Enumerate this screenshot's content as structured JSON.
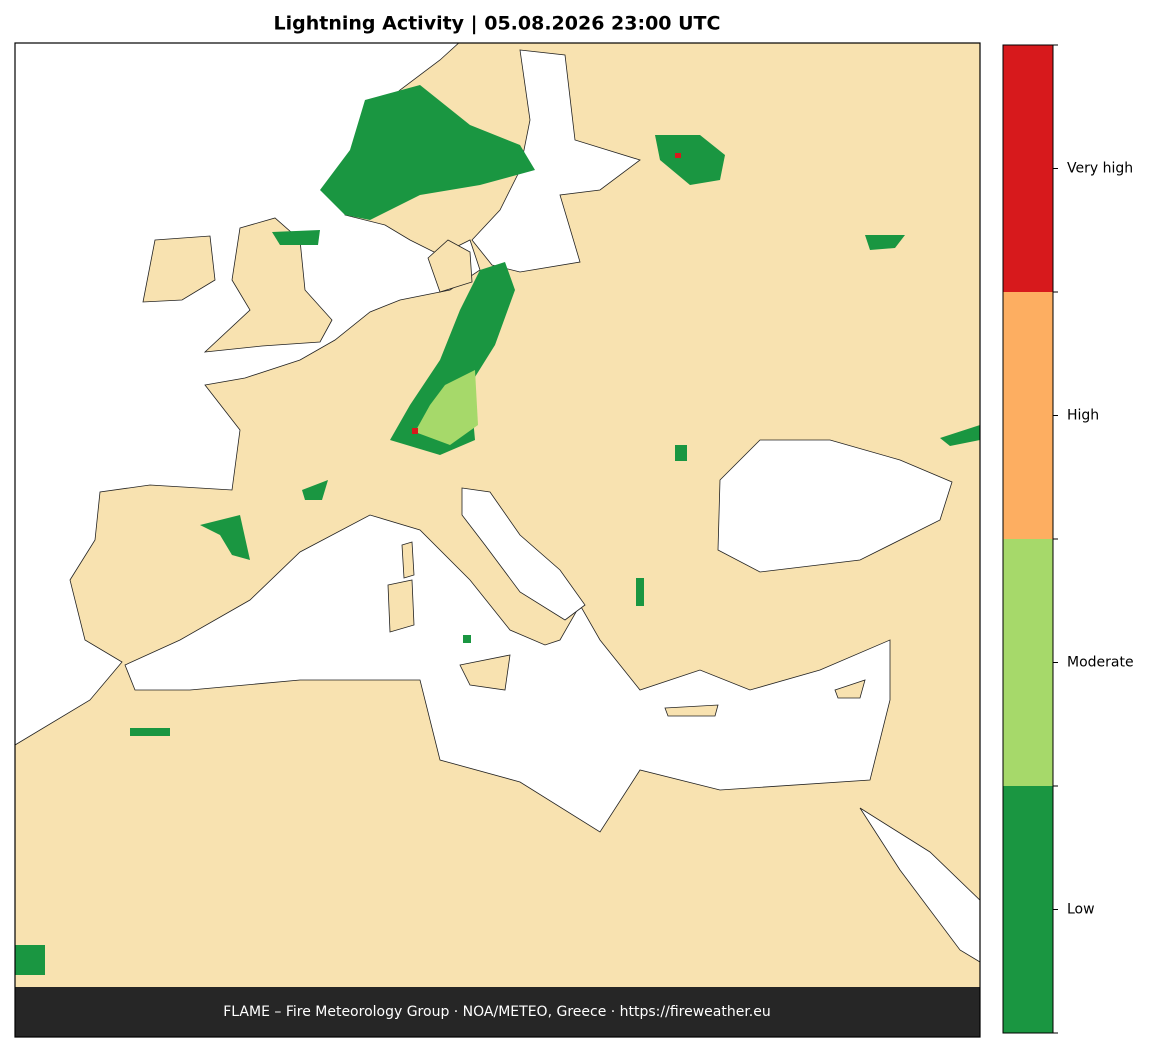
{
  "title": "Lightning Activity  |  05.08.2026 23:00 UTC",
  "footer": "FLAME – Fire Meteorology Group · NOA/METEO, Greece · https://fireweather.eu",
  "legend": {
    "items": [
      {
        "label": "Very high",
        "color": "#d7191c"
      },
      {
        "label": "High",
        "color": "#fdae61"
      },
      {
        "label": "Moderate",
        "color": "#a6d96a"
      },
      {
        "label": "Low",
        "color": "#1a9641"
      }
    ]
  }
}
